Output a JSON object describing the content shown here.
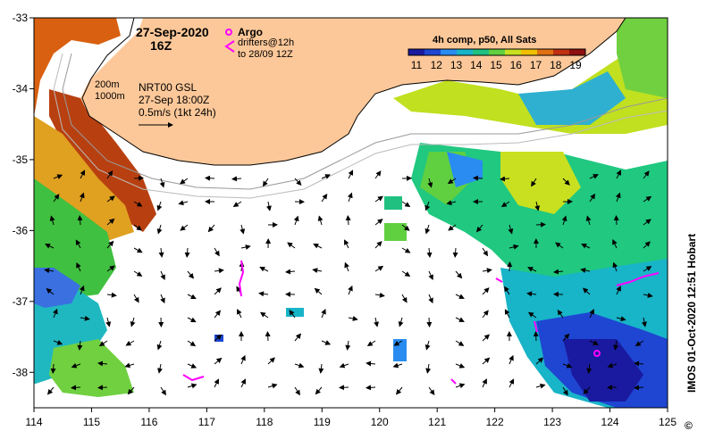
{
  "title": {
    "date": "27-Sep-2020",
    "time": "16Z"
  },
  "legend_argo": {
    "argo_label": "Argo",
    "drifters_line1": "drifters@12h",
    "drifters_line2": "to 28/09 12Z"
  },
  "legend_contours": {
    "line1": "200m",
    "line2": "1000m"
  },
  "legend_currents": {
    "line1": "NRT00 GSL",
    "line2": "27-Sep 18:00Z",
    "line3": "0.5m/s (1kt 24h)"
  },
  "colorbar": {
    "title": "4h comp, p50, All Sats",
    "ticks": [
      "11",
      "12",
      "13",
      "14",
      "15",
      "16",
      "17",
      "18",
      "19"
    ],
    "colors": [
      "#1a1aa0",
      "#1e46d2",
      "#2a8cf0",
      "#18b4c8",
      "#20c080",
      "#60d040",
      "#c8e020",
      "#f0c000",
      "#e07010",
      "#c03010",
      "#901010"
    ]
  },
  "credit": {
    "text": "IMOS 01-Oct-2020 12:51 Hobart",
    "copyright": "©"
  },
  "axes": {
    "x_ticks": [
      "114",
      "115",
      "116",
      "117",
      "118",
      "119",
      "120",
      "121",
      "122",
      "123",
      "124",
      "125"
    ],
    "y_ticks": [
      "-33",
      "-34",
      "-35",
      "-36",
      "-37",
      "-38"
    ],
    "lon_range": [
      114,
      125
    ],
    "lat_range": [
      -38.5,
      -33
    ]
  },
  "colors": {
    "land": "#fdc899",
    "ocean_nodata": "#ffffff",
    "argo_drifter": "#ff00ff"
  }
}
